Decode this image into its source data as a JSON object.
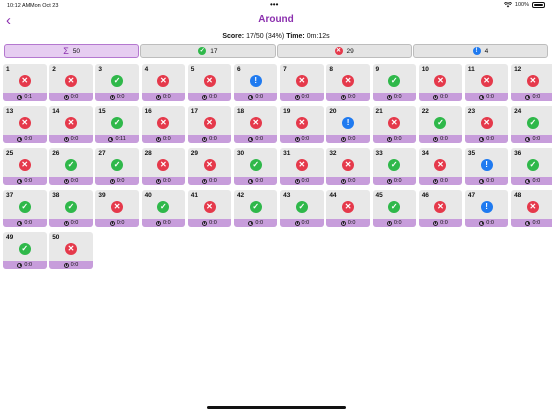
{
  "status_bar": {
    "time": "10:12 AM",
    "date": "Mon Oct 23",
    "dots": "•••",
    "battery": "100%"
  },
  "nav": {
    "back_symbol": "‹",
    "title": "Around"
  },
  "score": {
    "score_label": "Score:",
    "score_value": "17/50 (34%)",
    "time_label": "Time:",
    "time_value": "0m:12s"
  },
  "filters": [
    {
      "symbol": "Σ",
      "count": "50",
      "kind": "all",
      "selected": true
    },
    {
      "symbol": "✓",
      "count": "17",
      "kind": "correct",
      "selected": false
    },
    {
      "symbol": "✕",
      "count": "29",
      "kind": "wrong",
      "selected": false
    },
    {
      "symbol": "!",
      "count": "4",
      "kind": "skipped",
      "selected": false
    }
  ],
  "colors": {
    "accent": "#8b2fae",
    "correct": "#2fb84a",
    "wrong": "#e5394b",
    "skipped": "#1f7af0",
    "timer_bar": "#c79ddb"
  },
  "questions": [
    {
      "n": "1",
      "s": "wrong",
      "t": "0:1"
    },
    {
      "n": "2",
      "s": "wrong",
      "t": "0:0"
    },
    {
      "n": "3",
      "s": "correct",
      "t": "0:0"
    },
    {
      "n": "4",
      "s": "wrong",
      "t": "0:0"
    },
    {
      "n": "5",
      "s": "wrong",
      "t": "0:0"
    },
    {
      "n": "6",
      "s": "skipped",
      "t": "0:0"
    },
    {
      "n": "7",
      "s": "wrong",
      "t": "0:0"
    },
    {
      "n": "8",
      "s": "wrong",
      "t": "0:0"
    },
    {
      "n": "9",
      "s": "correct",
      "t": "0:0"
    },
    {
      "n": "10",
      "s": "wrong",
      "t": "0:0"
    },
    {
      "n": "11",
      "s": "wrong",
      "t": "0:0"
    },
    {
      "n": "12",
      "s": "wrong",
      "t": "0:0"
    },
    {
      "n": "13",
      "s": "wrong",
      "t": "0:0"
    },
    {
      "n": "14",
      "s": "wrong",
      "t": "0:0"
    },
    {
      "n": "15",
      "s": "correct",
      "t": "0:11"
    },
    {
      "n": "16",
      "s": "wrong",
      "t": "0:0"
    },
    {
      "n": "17",
      "s": "wrong",
      "t": "0:0"
    },
    {
      "n": "18",
      "s": "wrong",
      "t": "0:0"
    },
    {
      "n": "19",
      "s": "wrong",
      "t": "0:0"
    },
    {
      "n": "20",
      "s": "skipped",
      "t": "0:0"
    },
    {
      "n": "21",
      "s": "wrong",
      "t": "0:0"
    },
    {
      "n": "22",
      "s": "correct",
      "t": "0:0"
    },
    {
      "n": "23",
      "s": "wrong",
      "t": "0:0"
    },
    {
      "n": "24",
      "s": "correct",
      "t": "0:0"
    },
    {
      "n": "25",
      "s": "wrong",
      "t": "0:0"
    },
    {
      "n": "26",
      "s": "correct",
      "t": "0:0"
    },
    {
      "n": "27",
      "s": "correct",
      "t": "0:0"
    },
    {
      "n": "28",
      "s": "wrong",
      "t": "0:0"
    },
    {
      "n": "29",
      "s": "wrong",
      "t": "0:0"
    },
    {
      "n": "30",
      "s": "correct",
      "t": "0:0"
    },
    {
      "n": "31",
      "s": "wrong",
      "t": "0:0"
    },
    {
      "n": "32",
      "s": "wrong",
      "t": "0:0"
    },
    {
      "n": "33",
      "s": "correct",
      "t": "0:0"
    },
    {
      "n": "34",
      "s": "wrong",
      "t": "0:0"
    },
    {
      "n": "35",
      "s": "skipped",
      "t": "0:0"
    },
    {
      "n": "36",
      "s": "correct",
      "t": "0:0"
    },
    {
      "n": "37",
      "s": "correct",
      "t": "0:0"
    },
    {
      "n": "38",
      "s": "correct",
      "t": "0:0"
    },
    {
      "n": "39",
      "s": "wrong",
      "t": "0:0"
    },
    {
      "n": "40",
      "s": "correct",
      "t": "0:0"
    },
    {
      "n": "41",
      "s": "wrong",
      "t": "0:0"
    },
    {
      "n": "42",
      "s": "correct",
      "t": "0:0"
    },
    {
      "n": "43",
      "s": "correct",
      "t": "0:0"
    },
    {
      "n": "44",
      "s": "wrong",
      "t": "0:0"
    },
    {
      "n": "45",
      "s": "correct",
      "t": "0:0"
    },
    {
      "n": "46",
      "s": "wrong",
      "t": "0:0"
    },
    {
      "n": "47",
      "s": "skipped",
      "t": "0:0"
    },
    {
      "n": "48",
      "s": "wrong",
      "t": "0:0"
    },
    {
      "n": "49",
      "s": "correct",
      "t": "0:0"
    },
    {
      "n": "50",
      "s": "wrong",
      "t": "0:0"
    }
  ]
}
